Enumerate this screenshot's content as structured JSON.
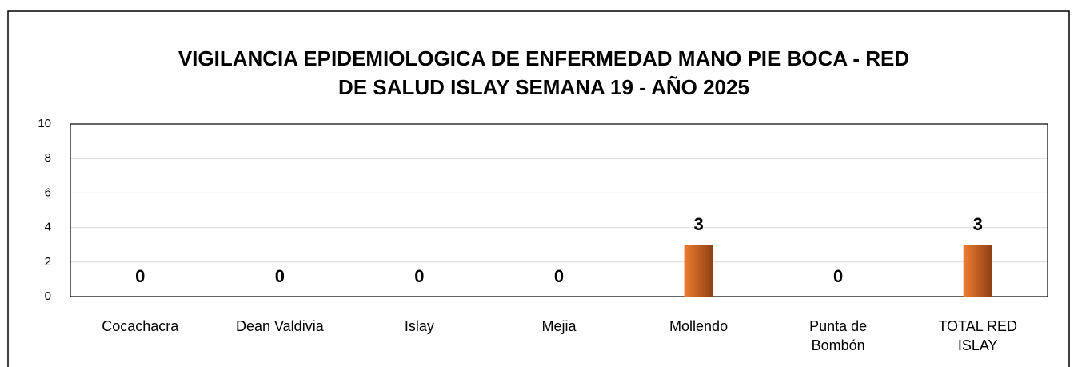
{
  "chart_data": {
    "type": "bar",
    "title": [
      "VIGILANCIA EPIDEMIOLOGICA DE ENFERMEDAD MANO PIE BOCA  - RED",
      "DE SALUD ISLAY      SEMANA 19 -  AÑO 2025"
    ],
    "categories": [
      "Cocachacra",
      "Dean Valdivia",
      "Islay",
      "Mejia",
      "Mollendo",
      "Punta de Bombón",
      "TOTAL RED ISLAY"
    ],
    "values": [
      0,
      0,
      0,
      0,
      3,
      0,
      3
    ],
    "color": "#ed7d31",
    "ylim": [
      0,
      10
    ],
    "yticks": [
      0,
      2,
      4,
      6,
      8,
      10
    ],
    "grid": true
  }
}
